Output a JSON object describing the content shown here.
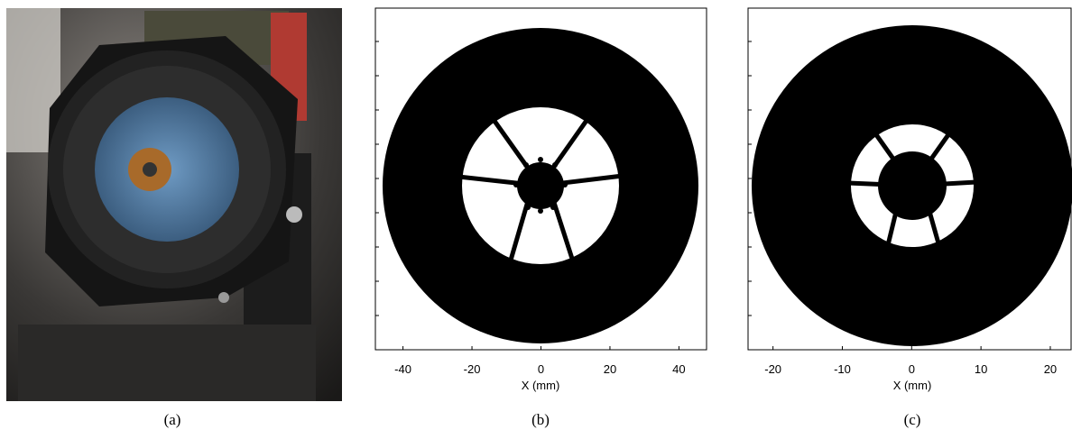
{
  "panels": [
    {
      "caption": "(a)"
    },
    {
      "caption": "(b)",
      "xlabel": "X (mm)",
      "xlim": [
        -48,
        48
      ],
      "xticks": [
        -40,
        -20,
        0,
        20,
        40
      ]
    },
    {
      "caption": "(c)",
      "xlabel": "X (mm)",
      "xlim": [
        -23.6,
        23
      ],
      "xticks": [
        -20,
        -10,
        0,
        10,
        20
      ]
    }
  ]
}
